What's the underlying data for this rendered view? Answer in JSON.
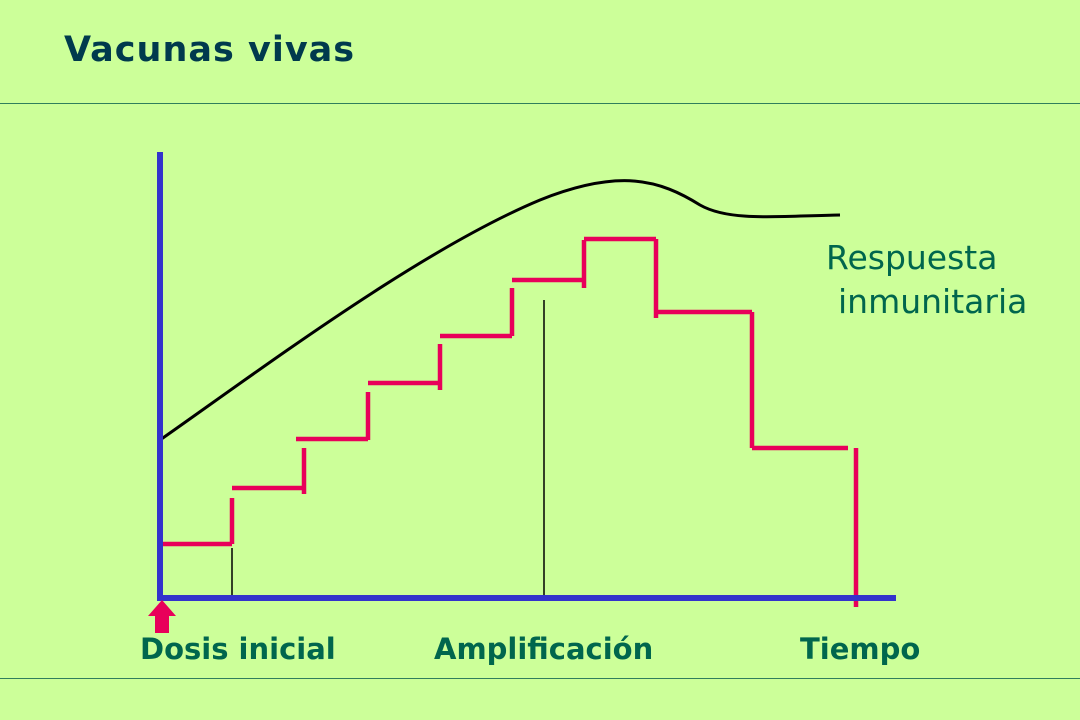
{
  "title": "Vacunas vivas",
  "response_label": {
    "line1": "Respuesta",
    "line2": "inmunitaria"
  },
  "x_labels": {
    "start": "Dosis inicial",
    "middle": "Amplificación",
    "end": "Tiempo"
  },
  "colors": {
    "background": "#ccff99",
    "title": "#003a4d",
    "labels": "#00664d",
    "axis": "#3333cc",
    "steps": "#e8005a",
    "curve": "#000000",
    "arrow": "#e8005a"
  }
}
